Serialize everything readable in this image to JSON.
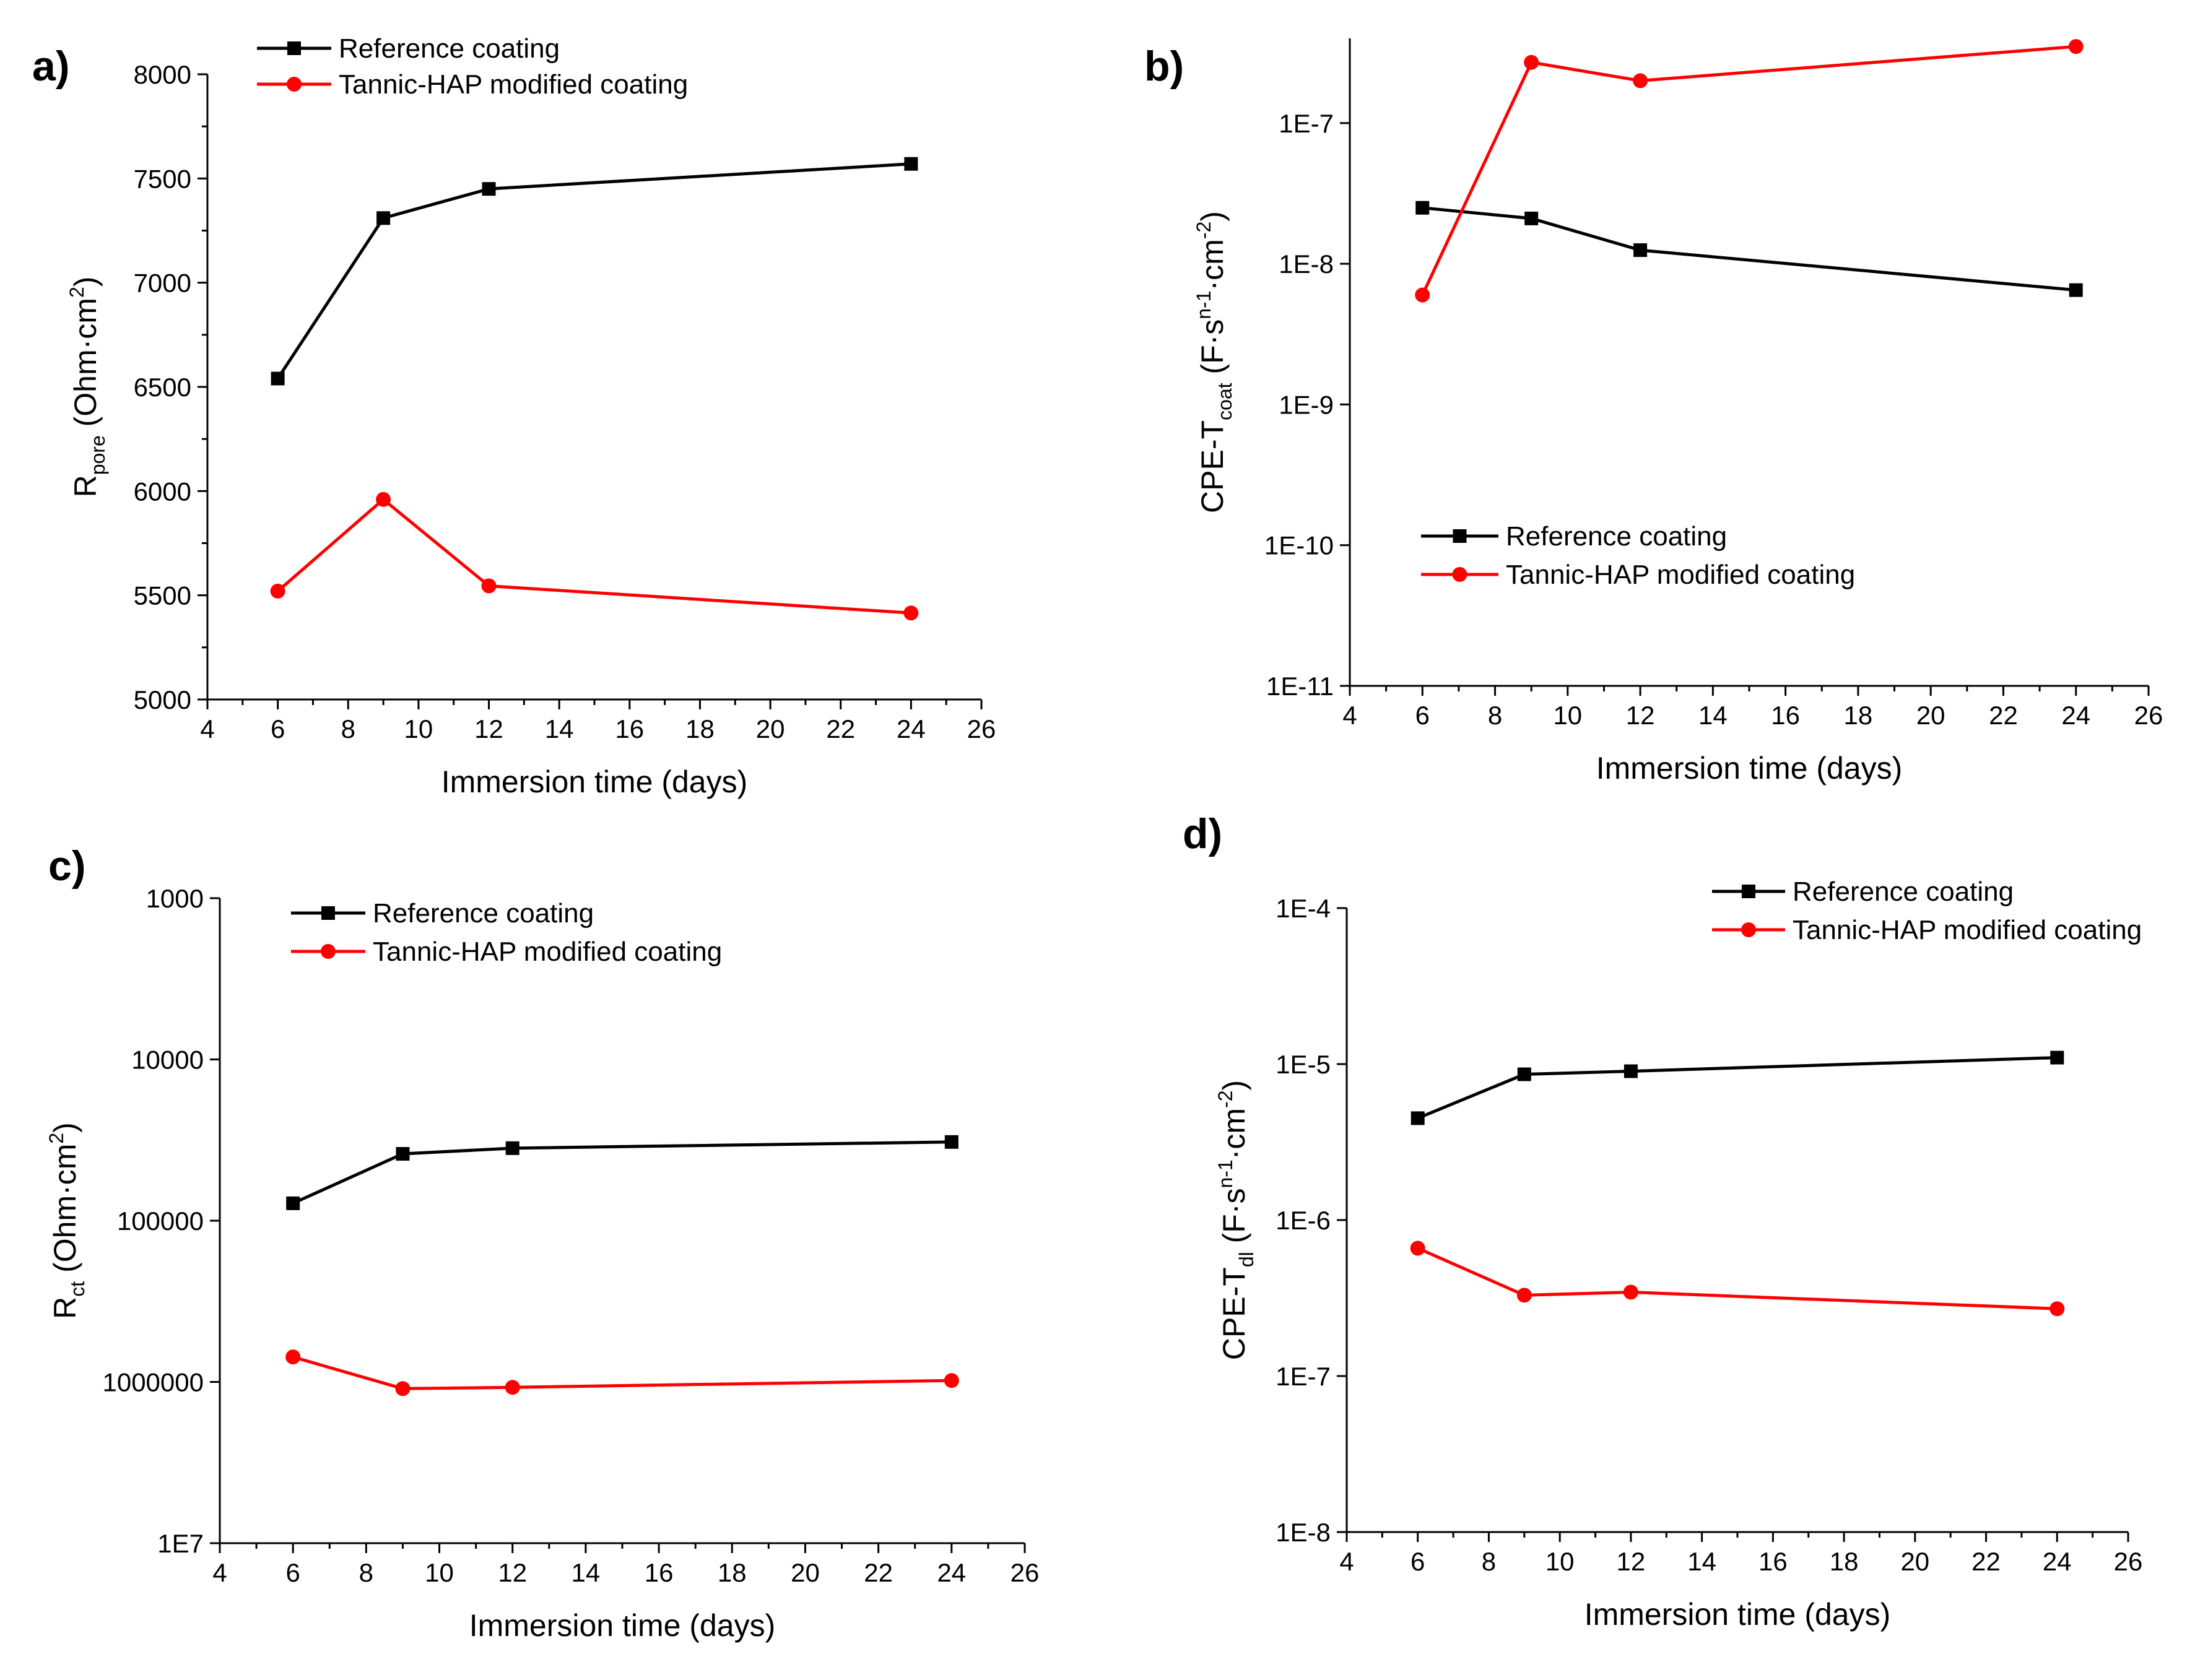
{
  "figure": {
    "colors": {
      "reference": "#000000",
      "tannic": "#ff0000"
    }
  },
  "chart_data": [
    {
      "panel": "a)",
      "type": "line",
      "x": [
        6,
        9,
        12,
        24
      ],
      "xlabel": "Immersion time (days)",
      "ylabel": {
        "main": "R",
        "sub": "pore",
        "rest": " (Ohm·cm",
        "sup": "2",
        "close": ")"
      },
      "xlim": [
        4,
        26
      ],
      "xticks": [
        4,
        6,
        8,
        10,
        12,
        14,
        16,
        18,
        20,
        22,
        24,
        26
      ],
      "ylim": [
        5000,
        8000
      ],
      "yscale": "linear",
      "yticks": [
        5000,
        5500,
        6000,
        6500,
        7000,
        7500,
        8000
      ],
      "ytick_labels": [
        "5000",
        "5500",
        "6000",
        "6500",
        "7000",
        "7500",
        "8000"
      ],
      "series": [
        {
          "name": "Reference coating",
          "marker": "square",
          "color": "#000000",
          "values": [
            6540,
            7310,
            7450,
            7570
          ]
        },
        {
          "name": "Tannic-HAP modified coating",
          "marker": "circle",
          "color": "#ff0000",
          "values": [
            5520,
            5960,
            5545,
            5415
          ]
        }
      ],
      "legend": "top-left"
    },
    {
      "panel": "b)",
      "type": "line",
      "x": [
        6,
        9,
        12,
        24
      ],
      "xlabel": "Immersion time (days)",
      "ylabel": {
        "main": "CPE-T",
        "sub": "coat",
        "rest": " (F·s",
        "sup": "n-1",
        "rest2": "·cm",
        "sup2": "-2",
        "close": ")"
      },
      "xlim": [
        4,
        26
      ],
      "xticks": [
        4,
        6,
        8,
        10,
        12,
        14,
        16,
        18,
        20,
        22,
        24,
        26
      ],
      "ylim": [
        1e-11,
        4e-07
      ],
      "yscale": "log",
      "yticks": [
        1e-11,
        1e-10,
        1e-09,
        1e-08,
        1e-07
      ],
      "ytick_labels": [
        "1E-11",
        "1E-10",
        "1E-9",
        "1E-8",
        "1E-7"
      ],
      "series": [
        {
          "name": "Reference coating",
          "marker": "square",
          "color": "#000000",
          "values": [
            2.5e-08,
            2.1e-08,
            1.25e-08,
            6.5e-09
          ]
        },
        {
          "name": "Tannic-HAP modified coating",
          "marker": "circle",
          "color": "#ff0000",
          "values": [
            6e-09,
            2.7e-07,
            2e-07,
            3.5e-07
          ]
        }
      ],
      "legend": "center-left"
    },
    {
      "panel": "c)",
      "type": "line",
      "x": [
        6,
        9,
        12,
        24
      ],
      "xlabel": "Immersion time (days)",
      "ylabel": {
        "main": "R",
        "sub": "ct",
        "rest": " (Ohm·cm",
        "sup": "2",
        "close": ")"
      },
      "xlim": [
        4,
        26
      ],
      "xticks": [
        4,
        6,
        8,
        10,
        12,
        14,
        16,
        18,
        20,
        22,
        24,
        26
      ],
      "ylim": [
        1000,
        10000000
      ],
      "yscale": "log-inverted",
      "yticks": [
        1000,
        10000,
        100000,
        1000000,
        10000000
      ],
      "ytick_labels": [
        "1000",
        "10000",
        "100000",
        "1000000",
        "1E7"
      ],
      "series": [
        {
          "name": "Reference coating",
          "marker": "square",
          "color": "#000000",
          "values": [
            78000,
            38500,
            35500,
            32500
          ]
        },
        {
          "name": "Tannic-HAP modified coating",
          "marker": "circle",
          "color": "#ff0000",
          "values": [
            700000,
            1100000,
            1080000,
            980000
          ]
        }
      ],
      "legend": "top-left"
    },
    {
      "panel": "d)",
      "type": "line",
      "x": [
        6,
        9,
        12,
        24
      ],
      "xlabel": "Immersion time (days)",
      "ylabel": {
        "main": "CPE-T",
        "sub": "dl",
        "rest": " (F·s",
        "sup": "n-1",
        "rest2": "·cm",
        "sup2": "-2",
        "close": ")"
      },
      "xlim": [
        4,
        26
      ],
      "xticks": [
        4,
        6,
        8,
        10,
        12,
        14,
        16,
        18,
        20,
        22,
        24,
        26
      ],
      "ylim": [
        1e-08,
        0.0001
      ],
      "yscale": "log",
      "yticks": [
        1e-08,
        1e-07,
        1e-06,
        1e-05,
        0.0001
      ],
      "ytick_labels": [
        "1E-8",
        "1E-7",
        "1E-6",
        "1E-5",
        "1E-4"
      ],
      "series": [
        {
          "name": "Reference coating",
          "marker": "square",
          "color": "#000000",
          "values": [
            4.5e-06,
            8.6e-06,
            9e-06,
            1.1e-05
          ]
        },
        {
          "name": "Tannic-HAP modified coating",
          "marker": "circle",
          "color": "#ff0000",
          "values": [
            6.6e-07,
            3.3e-07,
            3.45e-07,
            2.7e-07
          ]
        }
      ],
      "legend": "top-right"
    }
  ]
}
